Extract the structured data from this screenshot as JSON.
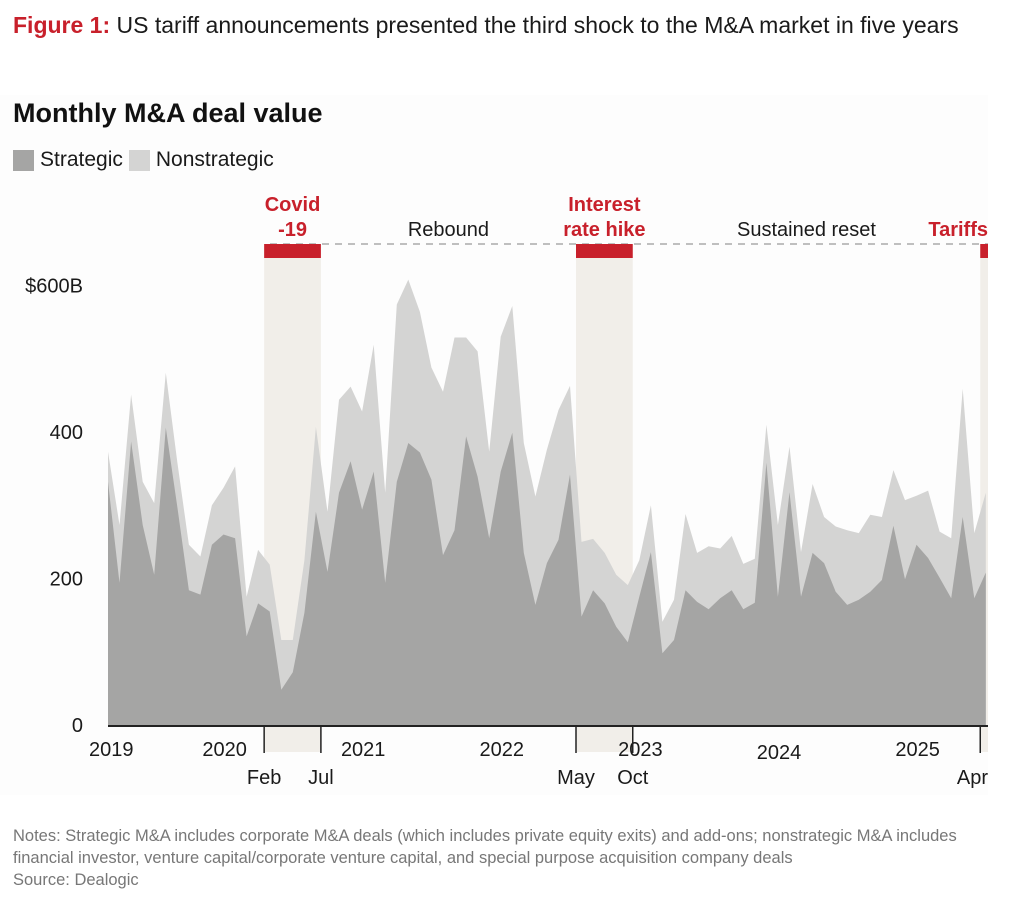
{
  "figure": {
    "label": "Figure 1:",
    "title": "US tariff announcements presented the third shock to the M&A market in five years"
  },
  "notes": {
    "text": "Notes: Strategic M&A includes corporate M&A deals (which includes private equity exits) and add-ons; nonstrategic M&A includes financial investor, venture capital/corporate venture capital, and special purpose acquisition company deals",
    "source": "Source: Dealogic"
  },
  "colors": {
    "strategic": "#a5a5a4",
    "nonstrategic": "#d4d4d3",
    "accent": "#c8202b",
    "event_band": "#f1eee9"
  },
  "chart_data": {
    "type": "area",
    "stacked": true,
    "title": "Monthly M&A deal value",
    "xlabel": "",
    "ylabel": "",
    "y_unit": "$B",
    "ylim": [
      0,
      660
    ],
    "y_ticks": [
      {
        "value": 0,
        "label": "0"
      },
      {
        "value": 200,
        "label": "200"
      },
      {
        "value": 400,
        "label": "400"
      },
      {
        "value": 600,
        "label": "$600B"
      }
    ],
    "grid": false,
    "legend": {
      "position": "top-left",
      "entries": [
        "Strategic",
        "Nonstrategic"
      ]
    },
    "x_start": "2019-01",
    "x_end": "2025-05",
    "x": [
      "2019-01",
      "2019-02",
      "2019-03",
      "2019-04",
      "2019-05",
      "2019-06",
      "2019-07",
      "2019-08",
      "2019-09",
      "2019-10",
      "2019-11",
      "2019-12",
      "2020-01",
      "2020-02",
      "2020-03",
      "2020-04",
      "2020-05",
      "2020-06",
      "2020-07",
      "2020-08",
      "2020-09",
      "2020-10",
      "2020-11",
      "2020-12",
      "2021-01",
      "2021-02",
      "2021-03",
      "2021-04",
      "2021-05",
      "2021-06",
      "2021-07",
      "2021-08",
      "2021-09",
      "2021-10",
      "2021-11",
      "2021-12",
      "2022-01",
      "2022-02",
      "2022-03",
      "2022-04",
      "2022-05",
      "2022-06",
      "2022-07",
      "2022-08",
      "2022-09",
      "2022-10",
      "2022-11",
      "2022-12",
      "2023-01",
      "2023-02",
      "2023-03",
      "2023-04",
      "2023-05",
      "2023-06",
      "2023-07",
      "2023-08",
      "2023-09",
      "2023-10",
      "2023-11",
      "2023-12",
      "2024-01",
      "2024-02",
      "2024-03",
      "2024-04",
      "2024-05",
      "2024-06",
      "2024-07",
      "2024-08",
      "2024-09",
      "2024-10",
      "2024-11",
      "2024-12",
      "2025-01",
      "2025-02",
      "2025-03",
      "2025-04",
      "2025-05"
    ],
    "series": [
      {
        "name": "Strategic",
        "values": [
          332,
          194,
          387,
          273,
          205,
          406,
          298,
          184,
          178,
          246,
          260,
          255,
          121,
          166,
          155,
          48,
          72,
          153,
          291,
          209,
          317,
          360,
          294,
          346,
          194,
          332,
          385,
          372,
          335,
          232,
          266,
          394,
          339,
          255,
          346,
          399,
          235,
          164,
          221,
          253,
          342,
          148,
          184,
          166,
          134,
          113,
          175,
          236,
          98,
          116,
          184,
          168,
          158,
          173,
          184,
          158,
          167,
          358,
          175,
          318,
          175,
          235,
          221,
          182,
          164,
          171,
          182,
          198,
          272,
          199,
          246,
          228,
          201,
          173,
          284,
          173,
          208
        ]
      },
      {
        "name": "Nonstrategic",
        "values": [
          41,
          79,
          64,
          59,
          98,
          75,
          61,
          62,
          52,
          54,
          64,
          98,
          54,
          73,
          64,
          68,
          44,
          72,
          116,
          82,
          127,
          102,
          134,
          173,
          123,
          242,
          223,
          192,
          153,
          223,
          263,
          135,
          171,
          118,
          184,
          173,
          150,
          148,
          155,
          177,
          121,
          102,
          70,
          69,
          71,
          78,
          50,
          64,
          43,
          55,
          104,
          67,
          86,
          68,
          74,
          62,
          60,
          52,
          98,
          62,
          61,
          94,
          63,
          89,
          102,
          91,
          105,
          86,
          76,
          108,
          67,
          92,
          63,
          82,
          175,
          89,
          109
        ]
      }
    ],
    "year_ticks": [
      {
        "label": "2019",
        "month": "2019-01"
      },
      {
        "label": "2020",
        "month": "2020-01"
      },
      {
        "label": "2021",
        "month": "2021-01"
      },
      {
        "label": "2022",
        "month": "2022-01"
      },
      {
        "label": "2023",
        "month": "2023-01"
      },
      {
        "label": "2024",
        "month": "2024-01"
      },
      {
        "label": "2025",
        "month": "2025-01"
      }
    ],
    "events": [
      {
        "label_lines": [
          "Covid",
          "-19"
        ],
        "start": "2020-02",
        "end": "2020-07",
        "start_label": "Feb",
        "end_label": "Jul"
      },
      {
        "label_lines": [
          "Interest",
          "rate hike"
        ],
        "start": "2022-05",
        "end": "2022-10",
        "start_label": "May",
        "end_label": "Oct"
      },
      {
        "label_lines": [
          "Tariffs"
        ],
        "start": "2025-04",
        "end": null,
        "start_label": "Apr",
        "end_label": null
      }
    ],
    "periods": [
      {
        "label": "Rebound",
        "between": [
          "2020-07",
          "2022-05"
        ]
      },
      {
        "label": "Sustained reset",
        "between": [
          "2022-10",
          "2025-04"
        ]
      }
    ]
  }
}
